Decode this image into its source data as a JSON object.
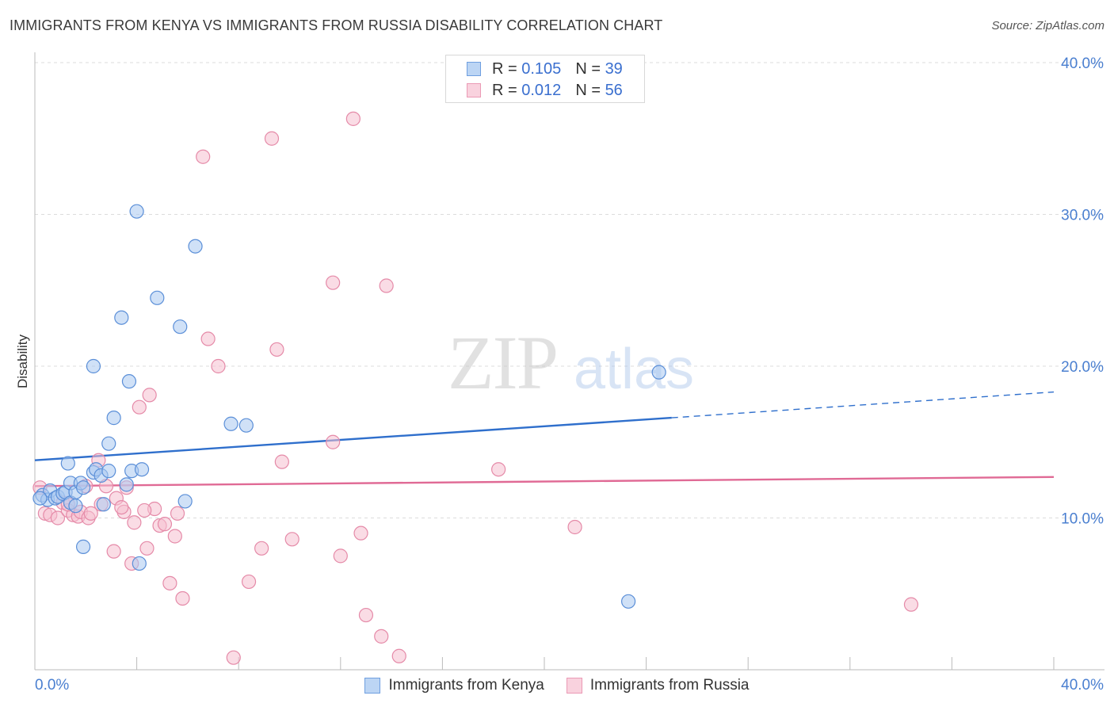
{
  "title": "IMMIGRANTS FROM KENYA VS IMMIGRANTS FROM RUSSIA DISABILITY CORRELATION CHART",
  "source": "Source: ZipAtlas.com",
  "watermark": {
    "zip": "ZIP",
    "atlas": "atlas"
  },
  "colors": {
    "kenya_fill": "#a9c8f0",
    "kenya_stroke": "#5b8fd8",
    "kenya_line": "#2f6fcc",
    "russia_fill": "#f6bfd0",
    "russia_stroke": "#e58aa8",
    "russia_line": "#e06a95",
    "tick_color": "#4a7fd0"
  },
  "legend": {
    "kenya": {
      "r_label": "R = ",
      "r_value": "0.105",
      "n_label": "N = ",
      "n_value": "39"
    },
    "russia": {
      "r_label": "R = ",
      "r_value": "0.012",
      "n_label": "N = ",
      "n_value": "56"
    }
  },
  "bottom_legend": {
    "kenya": "Immigrants from Kenya",
    "russia": "Immigrants from Russia"
  },
  "chart_data": {
    "type": "scatter",
    "title": "IMMIGRANTS FROM KENYA VS IMMIGRANTS FROM RUSSIA DISABILITY CORRELATION CHART",
    "xlabel": "",
    "ylabel": "Disability",
    "xlim": [
      0,
      40
    ],
    "ylim": [
      0,
      40
    ],
    "x_tick_labels": [
      "0.0%",
      "40.0%"
    ],
    "y_tick_labels": [
      {
        "value": 10,
        "label": "10.0%"
      },
      {
        "value": 20,
        "label": "20.0%"
      },
      {
        "value": 30,
        "label": "30.0%"
      },
      {
        "value": 40,
        "label": "40.0%"
      }
    ],
    "series": [
      {
        "name": "Immigrants from Kenya",
        "R": 0.105,
        "N": 39,
        "trend": {
          "x0": 0,
          "y0": 13.8,
          "x1": 25,
          "y1": 16.6,
          "dash_to_x": 40,
          "dash_to_y": 18.3
        },
        "points": [
          [
            0.3,
            11.5
          ],
          [
            0.5,
            11.2
          ],
          [
            0.6,
            11.8
          ],
          [
            0.8,
            11.3
          ],
          [
            0.9,
            11.4
          ],
          [
            1.1,
            11.6
          ],
          [
            1.2,
            11.7
          ],
          [
            1.4,
            11.0
          ],
          [
            1.4,
            12.3
          ],
          [
            1.3,
            13.6
          ],
          [
            1.6,
            11.7
          ],
          [
            1.6,
            10.8
          ],
          [
            1.8,
            12.3
          ],
          [
            1.9,
            12.0
          ],
          [
            2.3,
            13.0
          ],
          [
            2.4,
            13.2
          ],
          [
            2.6,
            12.8
          ],
          [
            2.7,
            10.9
          ],
          [
            2.9,
            13.1
          ],
          [
            2.9,
            14.9
          ],
          [
            3.1,
            16.6
          ],
          [
            3.4,
            23.2
          ],
          [
            3.6,
            12.2
          ],
          [
            3.7,
            19.0
          ],
          [
            3.8,
            13.1
          ],
          [
            4.0,
            30.2
          ],
          [
            4.2,
            13.2
          ],
          [
            4.1,
            7.0
          ],
          [
            4.8,
            24.5
          ],
          [
            5.7,
            22.6
          ],
          [
            5.9,
            11.1
          ],
          [
            6.3,
            27.9
          ],
          [
            7.7,
            16.2
          ],
          [
            8.3,
            16.1
          ],
          [
            1.9,
            8.1
          ],
          [
            2.3,
            20.0
          ],
          [
            24.5,
            19.6
          ],
          [
            23.3,
            4.5
          ],
          [
            0.2,
            11.3
          ]
        ]
      },
      {
        "name": "Immigrants from Russia",
        "R": 0.012,
        "N": 56,
        "trend": {
          "x0": 0,
          "y0": 12.1,
          "x1": 40,
          "y1": 12.7
        },
        "points": [
          [
            0.2,
            12.0
          ],
          [
            0.4,
            10.3
          ],
          [
            0.6,
            10.2
          ],
          [
            0.9,
            10.0
          ],
          [
            1.1,
            11.0
          ],
          [
            1.3,
            10.5
          ],
          [
            1.5,
            10.2
          ],
          [
            1.7,
            10.1
          ],
          [
            1.8,
            10.4
          ],
          [
            2.1,
            10.0
          ],
          [
            2.0,
            12.1
          ],
          [
            2.5,
            13.8
          ],
          [
            2.6,
            10.9
          ],
          [
            2.8,
            12.1
          ],
          [
            3.1,
            7.8
          ],
          [
            3.2,
            11.3
          ],
          [
            3.5,
            10.4
          ],
          [
            3.6,
            12.0
          ],
          [
            3.8,
            7.0
          ],
          [
            3.9,
            9.7
          ],
          [
            4.1,
            17.3
          ],
          [
            4.4,
            8.0
          ],
          [
            4.5,
            18.1
          ],
          [
            4.7,
            10.6
          ],
          [
            4.9,
            9.5
          ],
          [
            5.1,
            9.6
          ],
          [
            5.3,
            5.7
          ],
          [
            5.5,
            8.8
          ],
          [
            5.6,
            10.3
          ],
          [
            5.8,
            4.7
          ],
          [
            6.6,
            33.8
          ],
          [
            6.8,
            21.8
          ],
          [
            7.2,
            20.0
          ],
          [
            7.8,
            0.8
          ],
          [
            8.4,
            5.8
          ],
          [
            8.9,
            8.0
          ],
          [
            9.3,
            35.0
          ],
          [
            9.5,
            21.1
          ],
          [
            9.7,
            13.7
          ],
          [
            10.1,
            8.6
          ],
          [
            11.7,
            25.5
          ],
          [
            11.7,
            15.0
          ],
          [
            12.0,
            7.5
          ],
          [
            12.5,
            36.3
          ],
          [
            12.8,
            9.0
          ],
          [
            13.0,
            3.6
          ],
          [
            13.6,
            2.2
          ],
          [
            13.8,
            25.3
          ],
          [
            14.3,
            0.9
          ],
          [
            18.2,
            13.2
          ],
          [
            21.2,
            9.4
          ],
          [
            34.4,
            4.3
          ],
          [
            1.3,
            10.9
          ],
          [
            2.2,
            10.3
          ],
          [
            3.4,
            10.7
          ],
          [
            4.3,
            10.5
          ]
        ]
      }
    ]
  }
}
